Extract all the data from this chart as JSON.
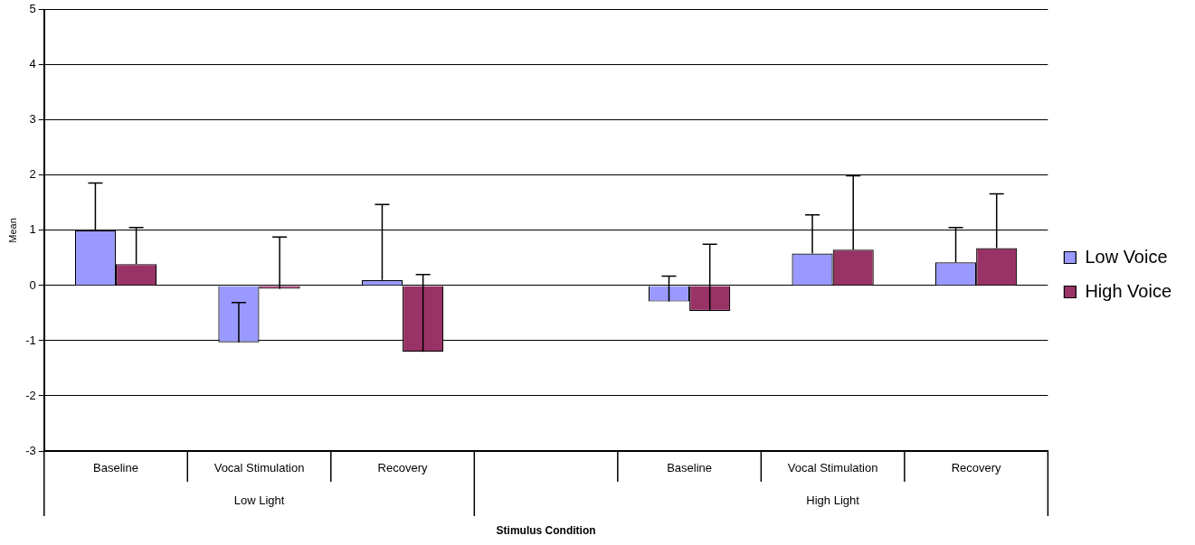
{
  "chart_data": {
    "type": "bar",
    "xlabel": "Stimulus Condition",
    "ylabel": "Mean",
    "categories": [
      "Baseline",
      "Vocal Stimulation",
      "Recovery",
      null,
      "Baseline",
      "Vocal Stimulation",
      "Recovery"
    ],
    "series": [
      {
        "name": "Low Voice",
        "color": "#9999ff",
        "values": [
          1.0,
          -1.03,
          0.1,
          null,
          -0.29,
          0.58,
          0.42
        ],
        "errors": [
          [
            1.0,
            1.86
          ],
          [
            -1.03,
            -0.31
          ],
          [
            0.1,
            1.47
          ],
          null,
          [
            -0.29,
            0.17
          ],
          [
            0.58,
            1.28
          ],
          [
            0.42,
            1.05
          ]
        ]
      },
      {
        "name": "High Voice",
        "color": "#993366",
        "values": [
          0.39,
          -0.06,
          -1.2,
          null,
          -0.46,
          0.65,
          0.68
        ],
        "errors": [
          [
            0.39,
            1.05
          ],
          [
            -0.06,
            0.88
          ],
          [
            -1.2,
            0.2
          ],
          null,
          [
            -0.46,
            0.75
          ],
          [
            0.65,
            1.99
          ],
          [
            0.68,
            1.66
          ]
        ]
      }
    ],
    "ylim": [
      -3,
      5
    ],
    "yticks": [
      -3,
      -2,
      -1,
      0,
      1,
      2,
      3,
      4,
      5
    ],
    "grid": "y",
    "legend": "right",
    "annotations": [
      "Low Light",
      "High Light"
    ]
  }
}
